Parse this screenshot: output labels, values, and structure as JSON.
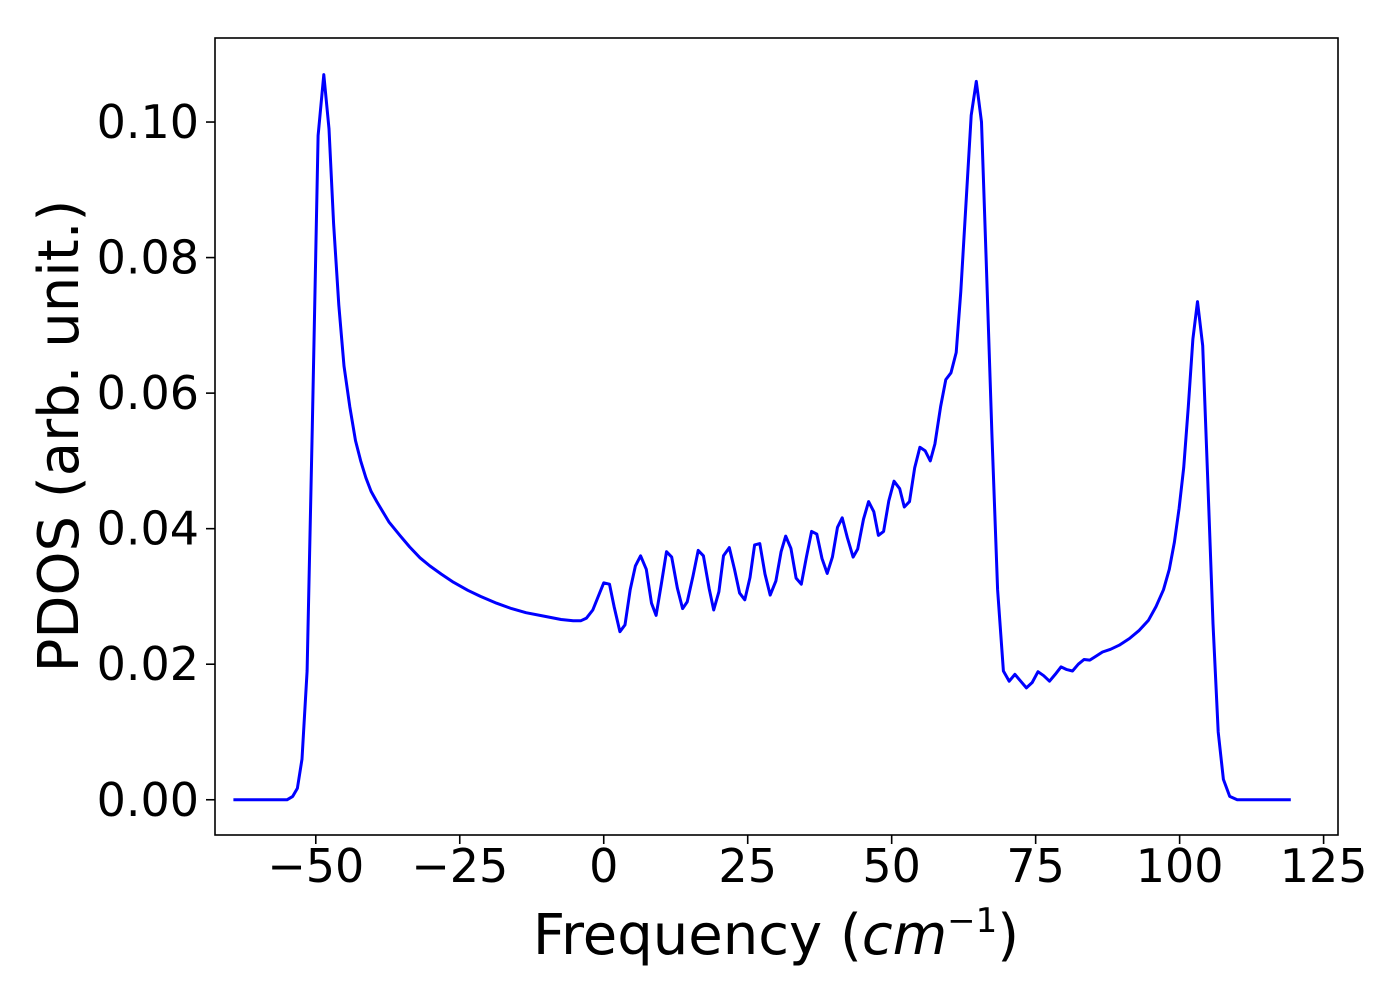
{
  "chart_data": {
    "type": "line",
    "xlabel": "Frequency (cm−1)",
    "xlabel_parts": {
      "prefix": "Frequency (",
      "unit_base": "cm",
      "unit_exponent": "−1",
      "suffix": ")"
    },
    "ylabel": "PDOS (arb. unit.)",
    "xlim": [
      -67.5,
      127.5
    ],
    "ylim": [
      -0.0052,
      0.1124
    ],
    "x_ticks": [
      -50,
      -25,
      0,
      25,
      50,
      75,
      100,
      125
    ],
    "x_tick_labels": [
      "−50",
      "−25",
      "0",
      "25",
      "50",
      "75",
      "100",
      "125"
    ],
    "y_ticks": [
      0.0,
      0.02,
      0.04,
      0.06,
      0.08,
      0.1
    ],
    "y_tick_labels": [
      "0.00",
      "0.02",
      "0.04",
      "0.06",
      "0.08",
      "0.10"
    ],
    "grid": false,
    "legend": "none",
    "series": [
      {
        "color": "#0000ff",
        "x": [
          -64.3,
          -55.0,
          -54.0,
          -53.2,
          -52.4,
          -51.5,
          -50.6,
          -49.6,
          -48.6,
          -47.7,
          -46.9,
          -46.0,
          -45.1,
          -44.1,
          -43.1,
          -42.2,
          -41.3,
          -40.4,
          -39.4,
          -38.5,
          -37.3,
          -35.4,
          -33.7,
          -31.9,
          -30.2,
          -28.2,
          -26.1,
          -23.6,
          -21.4,
          -18.6,
          -16.0,
          -13.5,
          -10.4,
          -7.4,
          -5.3,
          -4.0,
          -3.0,
          -1.9,
          -0.9,
          0.0,
          1.0,
          1.8,
          2.8,
          3.7,
          4.6,
          5.5,
          6.4,
          7.4,
          8.3,
          9.1,
          10.0,
          10.9,
          11.8,
          12.8,
          13.7,
          14.5,
          15.5,
          16.4,
          17.3,
          18.3,
          19.1,
          20.0,
          20.8,
          21.8,
          22.7,
          23.6,
          24.5,
          25.4,
          26.2,
          27.1,
          28.0,
          28.9,
          29.9,
          30.8,
          31.6,
          32.5,
          33.4,
          34.3,
          35.2,
          36.1,
          37.0,
          37.9,
          38.8,
          39.7,
          40.6,
          41.4,
          42.3,
          43.3,
          44.1,
          45.1,
          46.0,
          46.9,
          47.7,
          48.6,
          49.5,
          50.4,
          51.4,
          52.2,
          53.1,
          54.0,
          54.9,
          55.8,
          56.7,
          57.5,
          58.5,
          59.4,
          60.3,
          61.2,
          62.0,
          62.9,
          63.8,
          64.7,
          65.6,
          66.4,
          67.4,
          68.4,
          69.4,
          70.4,
          71.4,
          72.4,
          73.4,
          74.4,
          75.4,
          76.4,
          77.4,
          78.4,
          79.4,
          80.4,
          81.4,
          82.4,
          83.4,
          84.4,
          85.5,
          86.6,
          88.0,
          89.5,
          91.3,
          93.0,
          94.6,
          95.9,
          97.2,
          98.2,
          99.1,
          99.9,
          100.7,
          101.5,
          102.3,
          103.1,
          104.0,
          104.9,
          105.8,
          106.7,
          107.6,
          108.7,
          110.0,
          119.3
        ],
        "y": [
          0.0,
          0.0,
          0.0005,
          0.0017,
          0.006,
          0.019,
          0.055,
          0.098,
          0.107,
          0.099,
          0.085,
          0.073,
          0.064,
          0.058,
          0.053,
          0.05,
          0.0475,
          0.0455,
          0.044,
          0.0427,
          0.041,
          0.039,
          0.0373,
          0.0357,
          0.0345,
          0.0333,
          0.0321,
          0.0309,
          0.03,
          0.029,
          0.0282,
          0.0276,
          0.0271,
          0.0266,
          0.0264,
          0.0264,
          0.0268,
          0.028,
          0.0301,
          0.032,
          0.0318,
          0.0285,
          0.0248,
          0.0258,
          0.031,
          0.0345,
          0.036,
          0.034,
          0.029,
          0.0272,
          0.0318,
          0.0366,
          0.0358,
          0.0312,
          0.0282,
          0.0292,
          0.033,
          0.0368,
          0.036,
          0.0312,
          0.028,
          0.0307,
          0.036,
          0.0372,
          0.034,
          0.0305,
          0.0295,
          0.0328,
          0.0376,
          0.0378,
          0.0333,
          0.0302,
          0.0323,
          0.0366,
          0.0389,
          0.0371,
          0.0327,
          0.0318,
          0.0358,
          0.0396,
          0.0392,
          0.0356,
          0.0334,
          0.0358,
          0.0402,
          0.0416,
          0.0387,
          0.0358,
          0.037,
          0.0414,
          0.044,
          0.0425,
          0.039,
          0.0396,
          0.0441,
          0.047,
          0.0459,
          0.0432,
          0.044,
          0.049,
          0.052,
          0.0515,
          0.05,
          0.0525,
          0.058,
          0.062,
          0.063,
          0.066,
          0.075,
          0.088,
          0.101,
          0.106,
          0.1,
          0.08,
          0.054,
          0.031,
          0.019,
          0.0175,
          0.0185,
          0.0175,
          0.0165,
          0.0173,
          0.0189,
          0.0183,
          0.0175,
          0.0185,
          0.0196,
          0.0192,
          0.019,
          0.02,
          0.0207,
          0.0206,
          0.0212,
          0.0218,
          0.0222,
          0.0228,
          0.0238,
          0.025,
          0.0265,
          0.0285,
          0.031,
          0.034,
          0.038,
          0.043,
          0.049,
          0.058,
          0.068,
          0.0735,
          0.067,
          0.047,
          0.026,
          0.01,
          0.003,
          0.0005,
          0.0,
          0.0
        ]
      }
    ]
  }
}
